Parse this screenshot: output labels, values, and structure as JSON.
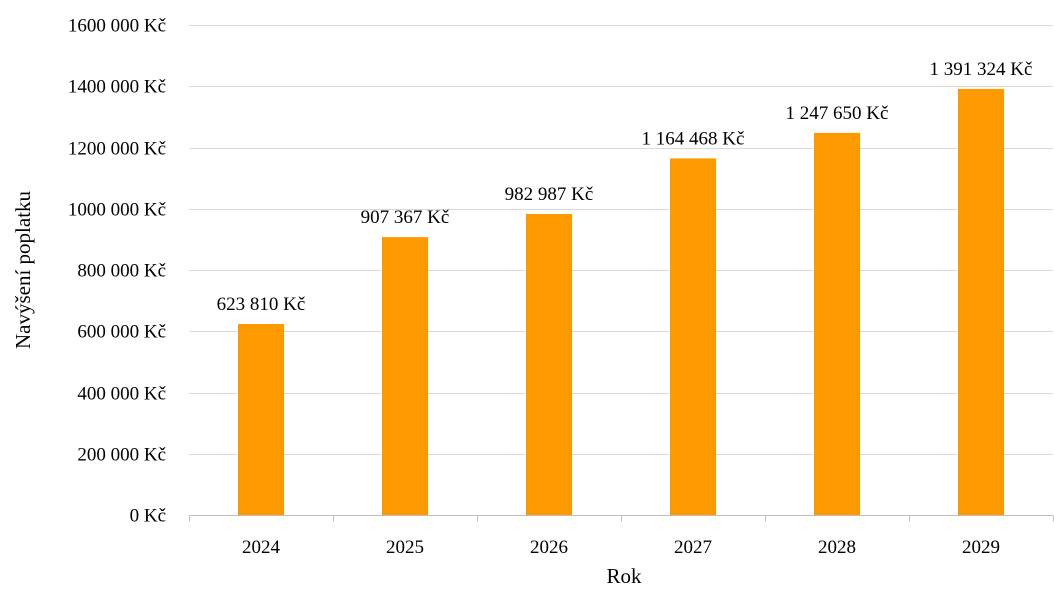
{
  "chart_data": {
    "type": "bar",
    "categories": [
      "2024",
      "2025",
      "2026",
      "2027",
      "2028",
      "2029"
    ],
    "values": [
      623810,
      907367,
      982987,
      1164468,
      1247650,
      1391324
    ],
    "data_labels": [
      "623 810 Kč",
      "907 367 Kč",
      "982 987 Kč",
      "1 164 468 Kč",
      "1 247 650 Kč",
      "1 391 324 Kč"
    ],
    "ylim": [
      0,
      1600000
    ],
    "y_ticks": [
      0,
      200000,
      400000,
      600000,
      800000,
      1000000,
      1200000,
      1400000,
      1600000
    ],
    "y_tick_labels": [
      "0 Kč",
      "200 000 Kč",
      "400 000 Kč",
      "600 000 Kč",
      "800 000 Kč",
      "1000 000 Kč",
      "1200 000 Kč",
      "1400 000 Kč",
      "1600 000 Kč"
    ],
    "xlabel": "Rok",
    "ylabel": "Navýšení poplatku",
    "title": "",
    "grid": true,
    "legend": false,
    "bar_color": "#ff9900"
  }
}
